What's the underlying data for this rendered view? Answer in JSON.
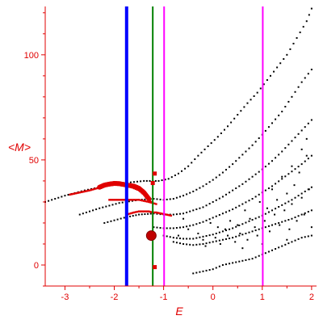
{
  "chart_data": {
    "type": "scatter",
    "title": "",
    "xlabel": "E",
    "ylabel": "<M>",
    "xlim": [
      -3.4,
      2.1
    ],
    "ylim": [
      -10,
      123
    ],
    "xticks": [
      -3,
      -2,
      -1,
      0,
      1,
      2
    ],
    "yticks": [
      0,
      50,
      100
    ],
    "grid": false,
    "colors": {
      "axis": "#e00000",
      "tick_label": "#e00000",
      "black_points": "#000000",
      "red_points": "#e00000",
      "blue_line": "#0000ff",
      "green_line": "#008000",
      "magenta_line": "#ff00ff"
    },
    "vertical_lines": [
      {
        "x": -1.75,
        "color": "#0000ff"
      },
      {
        "x": -1.22,
        "color": "#008000"
      },
      {
        "x": -0.99,
        "color": "#ff00ff"
      },
      {
        "x": 1.01,
        "color": "#ff00ff"
      }
    ],
    "black_bands": [
      {
        "x": [
          -3.4,
          -3.0,
          -2.6,
          -2.2,
          -1.8,
          -1.4,
          -1.1,
          -0.9,
          -0.7,
          -0.5,
          -0.3,
          -0.1,
          0.1,
          0.3,
          0.5,
          0.7,
          0.9,
          1.1,
          1.3,
          1.5,
          1.7,
          1.9,
          2.0
        ],
        "y": [
          30,
          33,
          35.5,
          37.5,
          39,
          40,
          40,
          41,
          43.5,
          47,
          52,
          56.5,
          61,
          66,
          71.5,
          77,
          82,
          88,
          94,
          100,
          108,
          116,
          122
        ]
      },
      {
        "x": [
          -2.7,
          -2.3,
          -1.9,
          -1.5,
          -1.2,
          -1.0,
          -0.8,
          -0.6,
          -0.4,
          -0.2,
          0.0,
          0.2,
          0.4,
          0.6,
          0.8,
          1.0,
          1.2,
          1.4,
          1.6,
          1.8,
          2.0
        ],
        "y": [
          24,
          27,
          29.5,
          31,
          31.5,
          31,
          31.5,
          33,
          35,
          37.5,
          40.5,
          44,
          48,
          52.5,
          57,
          62,
          67.5,
          73,
          80,
          87,
          93
        ]
      },
      {
        "x": [
          -2.2,
          -1.8,
          -1.5,
          -1.2,
          -1.0,
          -0.8,
          -0.6,
          -0.4,
          -0.2,
          0.0,
          0.2,
          0.4,
          0.6,
          0.8,
          1.0,
          1.2,
          1.4,
          1.6,
          1.8,
          2.0
        ],
        "y": [
          20,
          22.5,
          24,
          24.5,
          24,
          24,
          24.5,
          26,
          27.5,
          30,
          32.5,
          35.5,
          38.5,
          42,
          45.5,
          49.5,
          54,
          59,
          64,
          69
        ]
      },
      {
        "x": [
          -1.2,
          -1.0,
          -0.8,
          -0.6,
          -0.4,
          -0.2,
          0.0,
          0.2,
          0.4,
          0.6,
          0.8,
          1.0,
          1.2,
          1.4,
          1.6,
          1.8,
          2.0
        ],
        "y": [
          18,
          17.5,
          17.5,
          18,
          19,
          20.5,
          22.5,
          24.5,
          26.5,
          29,
          31.5,
          34.5,
          37.5,
          41,
          44.5,
          48,
          52
        ]
      },
      {
        "x": [
          -1.0,
          -0.8,
          -0.6,
          -0.4,
          -0.2,
          0.0,
          0.2,
          0.4,
          0.6,
          0.8,
          1.0,
          1.2,
          1.4,
          1.6,
          1.8,
          2.0
        ],
        "y": [
          14,
          13,
          12.5,
          12.5,
          13.5,
          14.5,
          16,
          17.5,
          19.5,
          21.5,
          23.5,
          26,
          28.5,
          31,
          34,
          37
        ]
      },
      {
        "x": [
          -0.8,
          -0.6,
          -0.4,
          -0.2,
          0.0,
          0.2,
          0.4,
          0.6,
          0.8,
          1.0,
          1.2,
          1.4,
          1.6,
          1.8,
          2.0
        ],
        "y": [
          11,
          10,
          9.5,
          10,
          11,
          12,
          13,
          14.5,
          16,
          17.5,
          19,
          20.5,
          22,
          24,
          26
        ]
      },
      {
        "x": [
          -0.4,
          -0.2,
          0.0,
          0.2,
          0.4,
          0.6,
          0.8,
          1.0,
          1.2,
          1.4,
          1.6,
          1.8,
          2.0
        ],
        "y": [
          -4,
          -3,
          -2,
          0,
          1,
          2,
          3,
          5,
          7,
          9,
          11,
          13,
          14
        ]
      }
    ],
    "black_scatter": [
      [
        -0.3,
        15
      ],
      [
        -0.2,
        12
      ],
      [
        -0.15,
        9
      ],
      [
        0.05,
        13
      ],
      [
        0.15,
        10
      ],
      [
        0.25,
        17
      ],
      [
        0.3,
        14
      ],
      [
        0.45,
        11
      ],
      [
        0.5,
        19
      ],
      [
        0.55,
        15
      ],
      [
        0.7,
        12
      ],
      [
        0.75,
        22
      ],
      [
        0.85,
        18
      ],
      [
        0.9,
        14
      ],
      [
        1.05,
        21
      ],
      [
        1.1,
        27
      ],
      [
        1.15,
        16
      ],
      [
        1.25,
        24
      ],
      [
        1.3,
        31
      ],
      [
        1.35,
        19
      ],
      [
        1.45,
        26
      ],
      [
        1.5,
        34
      ],
      [
        1.55,
        17
      ],
      [
        1.6,
        29
      ],
      [
        1.65,
        38
      ],
      [
        1.7,
        21
      ],
      [
        1.75,
        44
      ],
      [
        1.8,
        32
      ],
      [
        1.85,
        24
      ],
      [
        1.9,
        52
      ],
      [
        1.95,
        36
      ],
      [
        2.0,
        18
      ],
      [
        0.35,
        21
      ],
      [
        0.65,
        26
      ],
      [
        0.95,
        30
      ],
      [
        1.2,
        36
      ],
      [
        1.4,
        42
      ],
      [
        1.6,
        47
      ],
      [
        1.8,
        55
      ],
      [
        1.9,
        60
      ],
      [
        0.1,
        18
      ],
      [
        -0.05,
        20
      ],
      [
        0.6,
        8
      ],
      [
        1.0,
        10
      ],
      [
        1.5,
        12
      ],
      [
        -0.6,
        22
      ],
      [
        -0.5,
        17
      ],
      [
        -0.7,
        14
      ]
    ],
    "red_curves": [
      {
        "x": [
          -2.9,
          -2.7,
          -2.5,
          -2.35,
          -2.2,
          -2.1,
          -2.0,
          -1.9,
          -1.8,
          -1.7,
          -1.6,
          -1.5,
          -1.45,
          -1.4,
          -1.35,
          -1.3,
          -1.25
        ],
        "y": [
          33.5,
          34.5,
          35.5,
          36.5,
          37.5,
          38,
          38.5,
          38.5,
          38,
          37.5,
          36.5,
          35.5,
          34.5,
          33.5,
          32.5,
          31,
          30
        ]
      },
      {
        "x": [
          -2.1,
          -1.9,
          -1.8,
          -1.7,
          -1.6,
          -1.5,
          -1.4,
          -1.3,
          -1.22,
          -1.15
        ],
        "y": [
          31,
          31,
          31,
          31,
          31,
          31,
          30.5,
          30,
          29.5,
          29
        ]
      },
      {
        "x": [
          -1.75,
          -1.6,
          -1.5,
          -1.4,
          -1.3,
          -1.22,
          -1.15,
          -1.05,
          -0.95,
          -0.85
        ],
        "y": [
          24,
          25,
          25.5,
          25.5,
          25.5,
          25,
          25,
          24.5,
          24,
          23.5
        ]
      }
    ],
    "red_thick_segments": [
      {
        "x": [
          -2.3,
          -2.2,
          -2.1,
          -2.0,
          -1.9,
          -1.8,
          -1.75
        ],
        "y": [
          37,
          38,
          38.5,
          38.8,
          38.7,
          38.3,
          38
        ]
      },
      {
        "x": [
          -1.75,
          -1.6,
          -1.5,
          -1.45,
          -1.4,
          -1.35,
          -1.3
        ],
        "y": [
          38,
          37.5,
          36.5,
          35.5,
          34.5,
          33,
          31.5
        ]
      }
    ],
    "red_square_markers": [
      {
        "x": -1.18,
        "y": 43.5
      },
      {
        "x": -1.22,
        "y": 39
      },
      {
        "x": -1.18,
        "y": -1
      }
    ],
    "red_big_marker": {
      "x": -1.25,
      "y": 14
    }
  }
}
